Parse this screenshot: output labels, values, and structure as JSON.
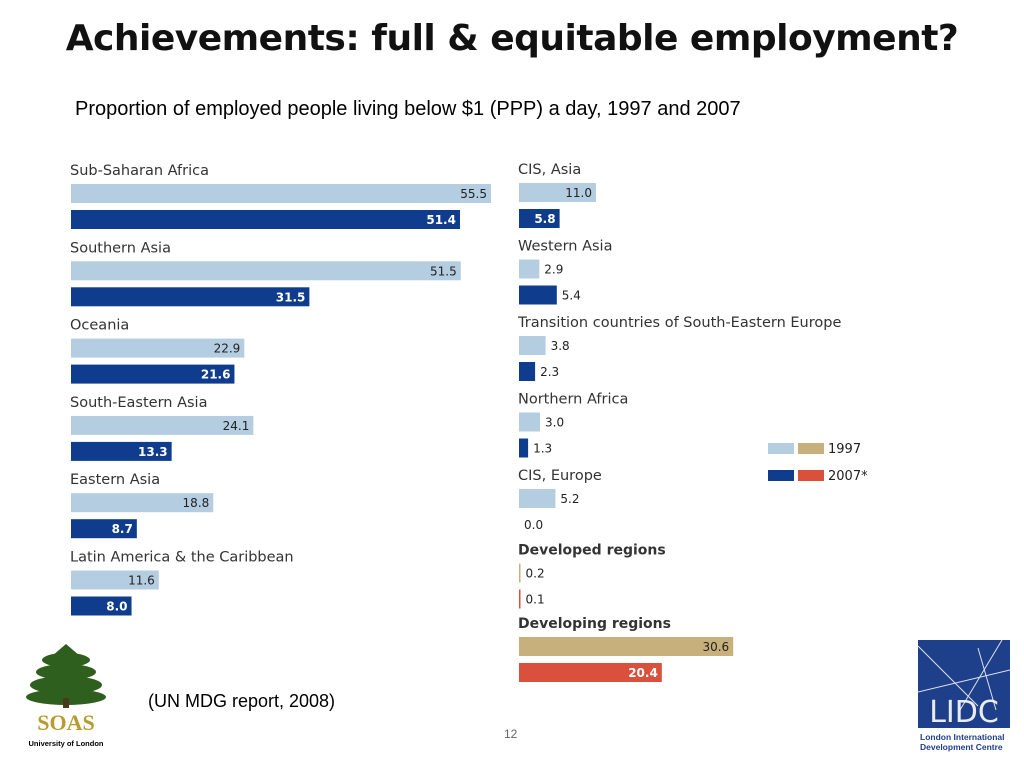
{
  "slide": {
    "title": "Achievements: full & equitable employment?",
    "subtitle": "Proportion of employed people living below $1 (PPP) a day, 1997 and 2007",
    "source": "(UN MDG report, 2008)",
    "page_number": "12"
  },
  "logos": {
    "soas_name": "SOAS",
    "soas_sub": "University of London",
    "lidc_name": "LIDC",
    "lidc_sub_1": "London International",
    "lidc_sub_2": "Development Centre"
  },
  "colors": {
    "bar_1997_region": "#b4cde0",
    "bar_2007_region": "#0f3c8c",
    "bar_1997_aggregate": "#c8b07c",
    "bar_2007_aggregate": "#d9503c"
  },
  "chart_data": {
    "type": "bar",
    "orientation": "horizontal",
    "unit": "percent",
    "series_names": [
      "1997",
      "2007*"
    ],
    "legend": {
      "position": "right",
      "labels": [
        "1997",
        "2007*"
      ]
    },
    "groups": [
      {
        "category": "Sub-Saharan Africa",
        "v1997": 55.5,
        "v2007": 51.4,
        "v1997_label": "55.5",
        "v2007_label": "51.4",
        "bold": false
      },
      {
        "category": "Southern Asia",
        "v1997": 51.5,
        "v2007": 31.5,
        "v1997_label": "51.5",
        "v2007_label": "31.5",
        "bold": false
      },
      {
        "category": "Oceania",
        "v1997": 22.9,
        "v2007": 21.6,
        "v1997_label": "22.9",
        "v2007_label": "21.6",
        "bold": false
      },
      {
        "category": "South-Eastern Asia",
        "v1997": 24.1,
        "v2007": 13.3,
        "v1997_label": "24.1",
        "v2007_label": "13.3",
        "bold": false
      },
      {
        "category": "Eastern Asia",
        "v1997": 18.8,
        "v2007": 8.7,
        "v1997_label": "18.8",
        "v2007_label": "8.7",
        "bold": false
      },
      {
        "category": "Latin America & the Caribbean",
        "v1997": 11.6,
        "v2007": 8.0,
        "v1997_label": "11.6",
        "v2007_label": "8.0",
        "bold": false
      },
      {
        "category": "CIS, Asia",
        "v1997": 11.0,
        "v2007": 5.8,
        "v1997_label": "11.0",
        "v2007_label": "5.8",
        "bold": false
      },
      {
        "category": "Western Asia",
        "v1997": 2.9,
        "v2007": 5.4,
        "v1997_label": "2.9",
        "v2007_label": "5.4",
        "bold": false
      },
      {
        "category": "Transition countries of South-Eastern Europe",
        "v1997": 3.8,
        "v2007": 2.3,
        "v1997_label": "3.8",
        "v2007_label": "2.3",
        "bold": false
      },
      {
        "category": "Northern Africa",
        "v1997": 3.0,
        "v2007": 1.3,
        "v1997_label": "3.0",
        "v2007_label": "1.3",
        "bold": false
      },
      {
        "category": "CIS, Europe",
        "v1997": 5.2,
        "v2007": 0.0,
        "v1997_label": "5.2",
        "v2007_label": "0.0",
        "bold": false
      },
      {
        "category": "Developed regions",
        "v1997": 0.2,
        "v2007": 0.1,
        "v1997_label": "0.2",
        "v2007_label": "0.1",
        "bold": true
      },
      {
        "category": "Developing regions",
        "v1997": 30.6,
        "v2007": 20.4,
        "v1997_label": "30.6",
        "v2007_label": "20.4",
        "bold": true
      }
    ]
  }
}
